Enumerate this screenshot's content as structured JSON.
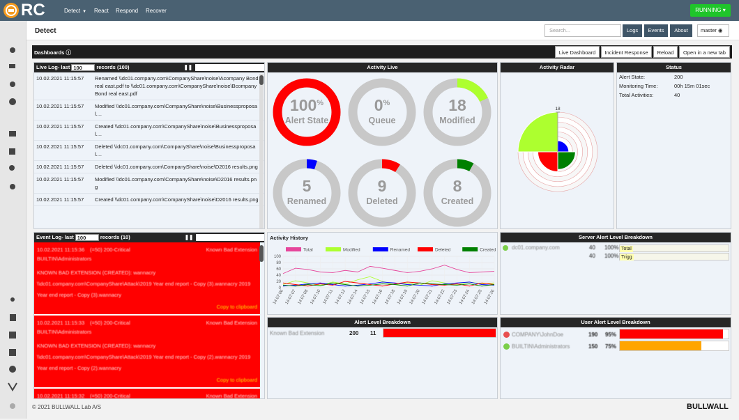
{
  "nav": {
    "logo": "RC",
    "menu": [
      "Detect",
      "React",
      "Respond",
      "Recover"
    ],
    "status": "RUNNING"
  },
  "header": {
    "title": "Detect",
    "search_placeholder": "Search...",
    "buttons": [
      "Logs",
      "Events",
      "About"
    ],
    "user": "master"
  },
  "dashboards": {
    "title": "Dashboards",
    "buttons": [
      "Live Dashboard",
      "Incident Response",
      "Reload",
      "Open in a new tab"
    ]
  },
  "live_log": {
    "title": "Live Log- last",
    "limit": "100",
    "records": "records (100)",
    "rows": [
      {
        "time": "10.02.2021 11:15:57",
        "text": "Renamed \\\\dc01.company.com\\CompanyShare\\noise\\Acompany Bond real east.pdf to \\\\dc01.company.com\\CompanyShare\\noise\\Bcompany Bond real east.pdf"
      },
      {
        "time": "10.02.2021 11:15:57",
        "text": "Modified \\\\dc01.company.com\\CompanyShare\\noise\\Businessproposal...."
      },
      {
        "time": "10.02.2021 11:15:57",
        "text": "Created \\\\dc01.company.com\\CompanyShare\\noise\\Businessproposal...."
      },
      {
        "time": "10.02.2021 11:15:57",
        "text": "Deleted \\\\dc01.company.com\\CompanyShare\\noise\\Businessproposal...."
      },
      {
        "time": "10.02.2021 11:15:57",
        "text": "Deleted \\\\dc01.company.com\\CompanyShare\\noise\\D2016 results.png"
      },
      {
        "time": "10.02.2021 11:15:57",
        "text": "Modified \\\\dc01.company.com\\CompanyShare\\noise\\D2016 results.png"
      },
      {
        "time": "10.02.2021 11:15:57",
        "text": "Created \\\\dc01.company.com\\CompanyShare\\noise\\D2016 results.png"
      }
    ]
  },
  "activity_live": {
    "title": "Activity Live",
    "gauges": [
      {
        "value": 100,
        "unit": "%",
        "label": "Alert State",
        "color": "#ff0000"
      },
      {
        "value": 0,
        "unit": "%",
        "label": "Queue",
        "color": "#c8c8c8"
      },
      {
        "value": 18,
        "label": "Modified",
        "color": "#adff2f"
      },
      {
        "value": 5,
        "label": "Renamed",
        "color": "#0000ff"
      },
      {
        "value": 9,
        "label": "Deleted",
        "color": "#ff0000"
      },
      {
        "value": 8,
        "label": "Created",
        "color": "#008000"
      }
    ]
  },
  "activity_radar": {
    "title": "Activity Radar",
    "rlim": [
      0,
      18
    ],
    "rticks": [
      18
    ],
    "values": [
      5,
      8,
      9,
      18
    ],
    "colors": [
      "#0000ff",
      "#008000",
      "#ff0000",
      "#adff2f"
    ]
  },
  "status": {
    "title": "Status",
    "rows": [
      {
        "label": "Alert State:",
        "value": 200
      },
      {
        "label": "Monitoring Time:",
        "value": "00h 15m 01sec"
      },
      {
        "label": "Total Activities:",
        "value": 40
      }
    ]
  },
  "event_log": {
    "title": "Event Log- last",
    "limit": "100",
    "records": "records (10)",
    "entries": [
      {
        "time": "10.02.2021 11:15:36",
        "level": "(=50) 200-Critical",
        "rule": "Known Bad Extension",
        "user": "BUILTIN\\Administrators",
        "message": "KNOWN BAD EXTENSION (CREATED): wannacry \\\\dc01.company.com\\CompanyShare\\Attack\\2019 Year end report - Copy (3).wannacry 2019 Year end report - Copy (3).wannacry",
        "action": "Copy to clipboard"
      },
      {
        "time": "10.02.2021 11:15:33",
        "level": "(=50) 200-Critical",
        "rule": "Known Bad Extension",
        "user": "BUILTIN\\Administrators",
        "message": "KNOWN BAD EXTENSION (CREATED): wannacry \\\\dc01.company.com\\CompanyShare\\Attack\\2019 Year end report - Copy (2).wannacry 2019 Year end report - Copy (2).wannacry",
        "action": "Copy to clipboard"
      },
      {
        "time": "10.02.2021 11:15:32",
        "level": "(=50) 200-Critical",
        "rule": "Known Bad Extension",
        "user": "BUILTIN\\Administrators"
      }
    ]
  },
  "chart_data": {
    "type": "line",
    "title": "Activity History",
    "categories": [
      "14:07:06",
      "14:07:07",
      "14:07:08",
      "14:07:10",
      "14:07:11",
      "14:07:12",
      "14:07:14",
      "14:07:15",
      "14:07:16",
      "14:07:18",
      "14:07:19",
      "14:07:20",
      "14:07:21",
      "14:07:22",
      "14:07:23",
      "14:07:24",
      "14:07:25",
      "14:07:26"
    ],
    "series": [
      {
        "name": "Total",
        "color": "#e6469b",
        "values": [
          45,
          62,
          58,
          50,
          48,
          55,
          50,
          68,
          62,
          55,
          48,
          52,
          60,
          72,
          58,
          48,
          50,
          52
        ]
      },
      {
        "name": "Modified",
        "color": "#adff2f",
        "values": [
          10,
          22,
          15,
          8,
          18,
          12,
          25,
          35,
          20,
          10,
          15,
          8,
          22,
          15,
          10,
          18,
          12,
          15
        ]
      },
      {
        "name": "Renamed",
        "color": "#0000ff",
        "values": [
          5,
          8,
          12,
          15,
          10,
          5,
          8,
          12,
          18,
          15,
          10,
          8,
          5,
          12,
          15,
          18,
          10,
          8
        ]
      },
      {
        "name": "Deleted",
        "color": "#ff0000",
        "values": [
          15,
          10,
          5,
          12,
          8,
          20,
          15,
          10,
          5,
          12,
          18,
          15,
          10,
          8,
          12,
          5,
          15,
          10
        ]
      },
      {
        "name": "Created",
        "color": "#008000",
        "values": [
          8,
          5,
          10,
          6,
          15,
          10,
          5,
          8,
          12,
          10,
          5,
          15,
          12,
          10,
          8,
          12,
          5,
          10
        ]
      }
    ],
    "ylim": [
      0,
      100
    ],
    "yticks": [
      0,
      20,
      40,
      60,
      80,
      100
    ],
    "grid": true
  },
  "server_alert": {
    "title": "Server Alert Level Breakdown",
    "rows": [
      {
        "name": "dc01.company.com",
        "count": 40,
        "percent": 100,
        "percent_label": "100%",
        "bar": "Total"
      },
      {
        "count": 40,
        "percent": 100,
        "percent_label": "100%",
        "bar": "Trigg"
      }
    ]
  },
  "alert_level": {
    "title": "Alert Level Breakdown",
    "rows": [
      {
        "name": "Known Bad Extension",
        "level": 200,
        "count": 11,
        "color": "#ff0000"
      }
    ]
  },
  "user_alert": {
    "title": "User Alert Level Breakdown",
    "rows": [
      {
        "name": "COMPANY\\JohnDoe",
        "level": 190,
        "percent": 95,
        "percent_label": "95%",
        "color": "#ff0000"
      },
      {
        "name": "BUILTIN\\Administrators",
        "level": 150,
        "percent": 75,
        "percent_label": "75%",
        "color": "#ffa500"
      }
    ]
  },
  "footer": {
    "copyright": "© 2021 BULLWALL Lab A/S",
    "brand": "BULLWALL"
  }
}
